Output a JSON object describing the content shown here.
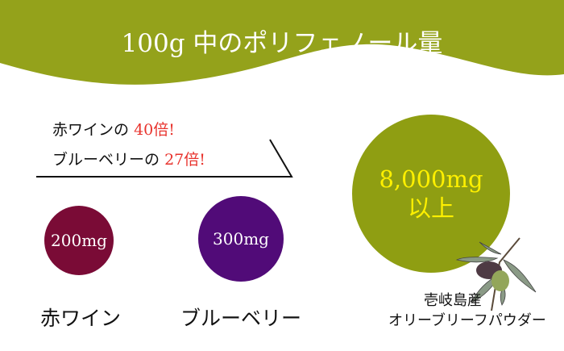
{
  "title": "100g 中のポリフェノール量",
  "comparison": {
    "line1_prefix": "赤ワインの",
    "line1_value": "40倍!",
    "line2_prefix": "ブルーベリーの",
    "line2_value": "27倍!"
  },
  "items": [
    {
      "amount": "200mg",
      "label": "赤ワイン",
      "color": "#7a0b36"
    },
    {
      "amount": "300mg",
      "label": "ブルーベリー",
      "color": "#510b78"
    },
    {
      "amount_line1": "8,000mg",
      "amount_line2": "以上",
      "label_line1": "壱岐島産",
      "label_line2": "オリーブリーフパウダー",
      "color": "#8f9e12"
    }
  ],
  "colors": {
    "header": "#94a21b",
    "highlight": "#e8322c",
    "big_text": "#fff000"
  }
}
